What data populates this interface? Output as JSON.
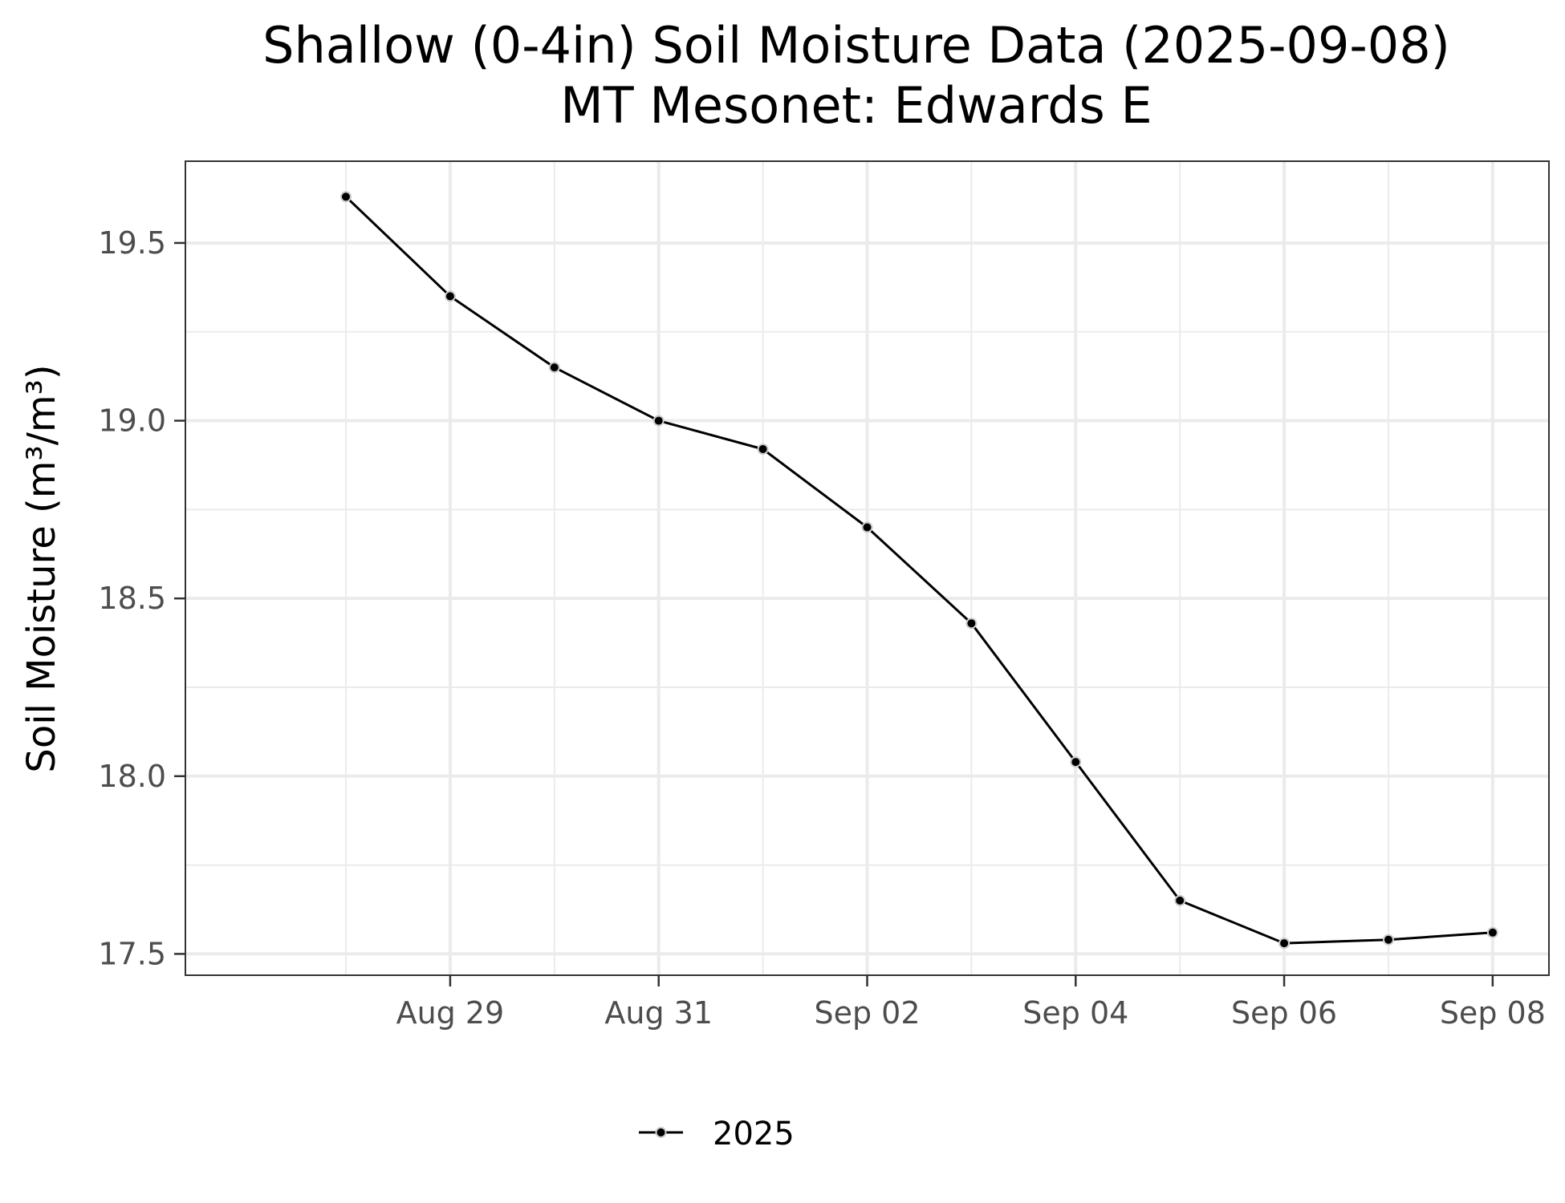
{
  "chart_data": {
    "type": "line",
    "title": "Shallow (0-4in) Soil Moisture Data (2025-09-08)",
    "subtitle": "MT Mesonet: Edwards E",
    "xlabel": "",
    "ylabel": "Soil Moisture (m³/m³)",
    "x_range": [
      "2025-08-27",
      "2025-09-08"
    ],
    "ylim": [
      17.44,
      19.73
    ],
    "x_ticks": [
      {
        "date": "2025-08-29",
        "label": "Aug 29"
      },
      {
        "date": "2025-08-31",
        "label": "Aug 31"
      },
      {
        "date": "2025-09-02",
        "label": "Sep 02"
      },
      {
        "date": "2025-09-04",
        "label": "Sep 04"
      },
      {
        "date": "2025-09-06",
        "label": "Sep 06"
      },
      {
        "date": "2025-09-08",
        "label": "Sep 08"
      }
    ],
    "x_minor_dates": [
      "2025-08-28",
      "2025-08-30",
      "2025-09-01",
      "2025-09-03",
      "2025-09-05",
      "2025-09-07"
    ],
    "y_ticks": [
      {
        "value": 17.5,
        "label": "17.5"
      },
      {
        "value": 18.0,
        "label": "18.0"
      },
      {
        "value": 18.5,
        "label": "18.5"
      },
      {
        "value": 19.0,
        "label": "19.0"
      },
      {
        "value": 19.5,
        "label": "19.5"
      }
    ],
    "y_minor_values": [
      17.75,
      18.25,
      18.75,
      19.25
    ],
    "grid": true,
    "legend_position": "bottom",
    "series": [
      {
        "name": "2025",
        "color": "#000000",
        "x": [
          "2025-08-28",
          "2025-08-29",
          "2025-08-30",
          "2025-08-31",
          "2025-09-01",
          "2025-09-02",
          "2025-09-03",
          "2025-09-04",
          "2025-09-05",
          "2025-09-06",
          "2025-09-07",
          "2025-09-08"
        ],
        "y": [
          19.63,
          19.35,
          19.15,
          19.0,
          18.92,
          18.7,
          18.43,
          18.04,
          17.65,
          17.53,
          17.54,
          17.56
        ]
      }
    ]
  }
}
